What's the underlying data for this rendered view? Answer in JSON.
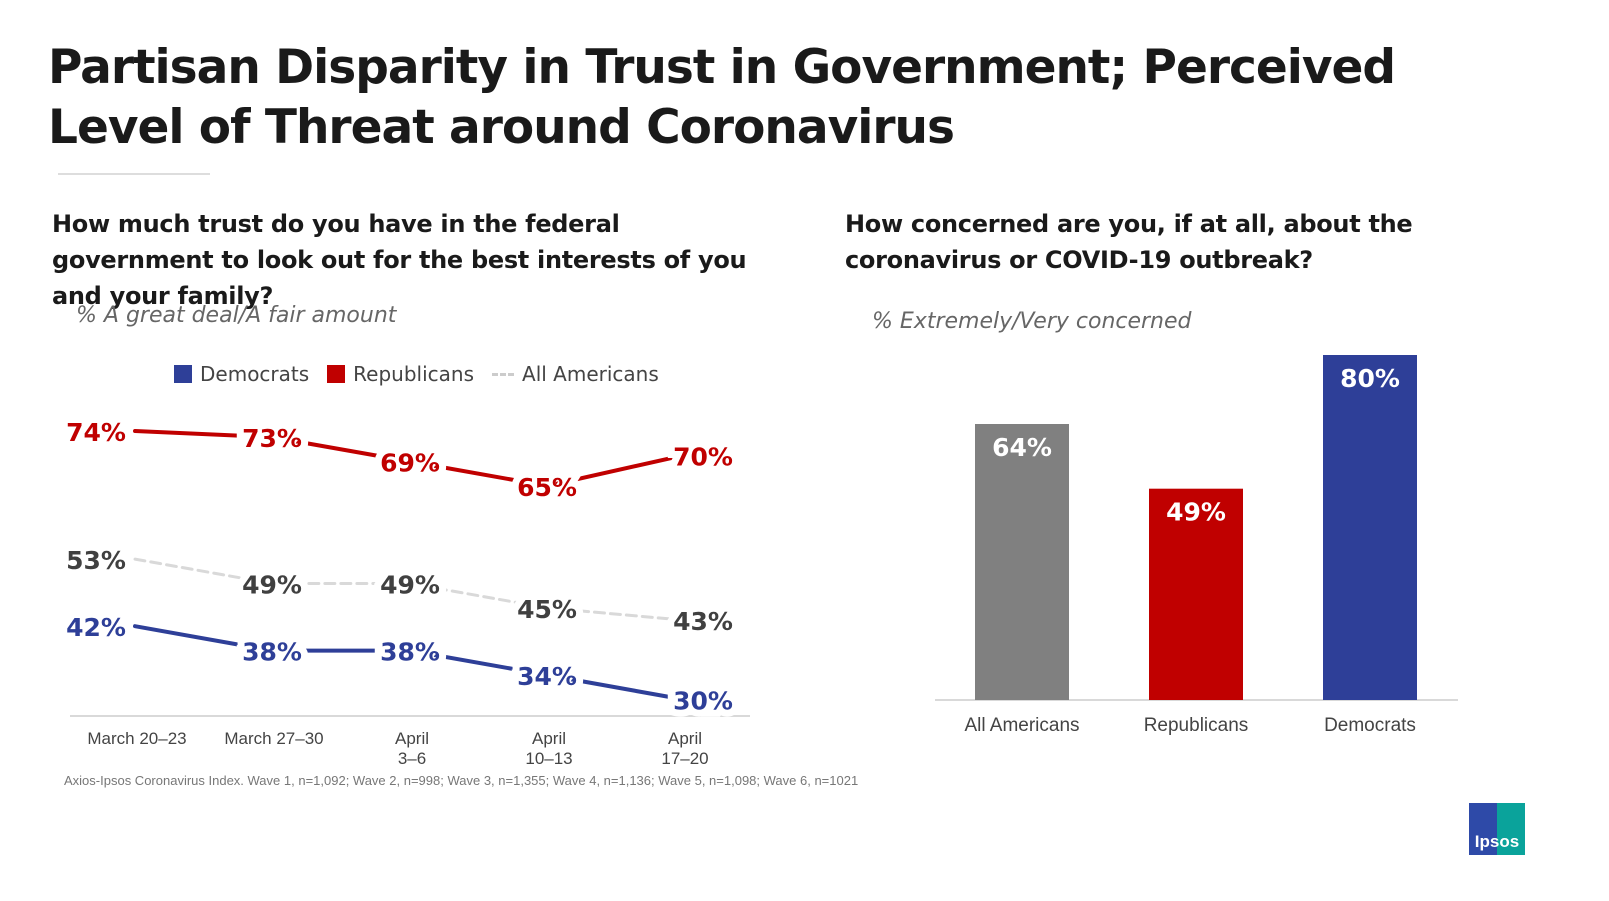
{
  "title": "Partisan Disparity in Trust in Government; Perceived Level of Threat around Coronavirus",
  "source": "Axios-Ipsos Coronavirus Index. Wave 1, n=1,092; Wave 2, n=998; Wave 3, n=1,355; Wave 4, n=1,136; Wave 5, n=1,098; Wave 6, n=1021",
  "logo": "Ipsos",
  "colors": {
    "democrats": "#2e3f98",
    "republicans": "#c00000",
    "all": "#d9d9d9",
    "all_bar": "#808080"
  },
  "chart_data": [
    {
      "type": "line",
      "title": "How much trust do you have in the federal government to look out for the best interests of you and your family?",
      "subtitle": "% A great deal/A fair amount",
      "categories": [
        "March 20–23",
        "March 27–30",
        "April\n3–6",
        "April\n10–13",
        "April\n17–20"
      ],
      "legend_placement": "top",
      "grid": false,
      "series": [
        {
          "name": "Democrats",
          "color": "#2e3f98",
          "values": [
            42,
            38,
            38,
            34,
            30
          ]
        },
        {
          "name": "Republicans",
          "color": "#c00000",
          "values": [
            74,
            73,
            69,
            65,
            70
          ]
        },
        {
          "name": "All Americans",
          "color": "#d9d9d9",
          "dashed": true,
          "values": [
            53,
            49,
            49,
            45,
            43
          ]
        }
      ]
    },
    {
      "type": "bar",
      "title": "How concerned are you, if at all, about the coronavirus or COVID-19 outbreak?",
      "subtitle": "% Extremely/Very concerned",
      "categories": [
        "All Americans",
        "Republicans",
        "Democrats"
      ],
      "values": [
        64,
        49,
        80
      ],
      "colors": [
        "#808080",
        "#c00000",
        "#2e3f98"
      ],
      "ylim": [
        0,
        80
      ]
    }
  ]
}
